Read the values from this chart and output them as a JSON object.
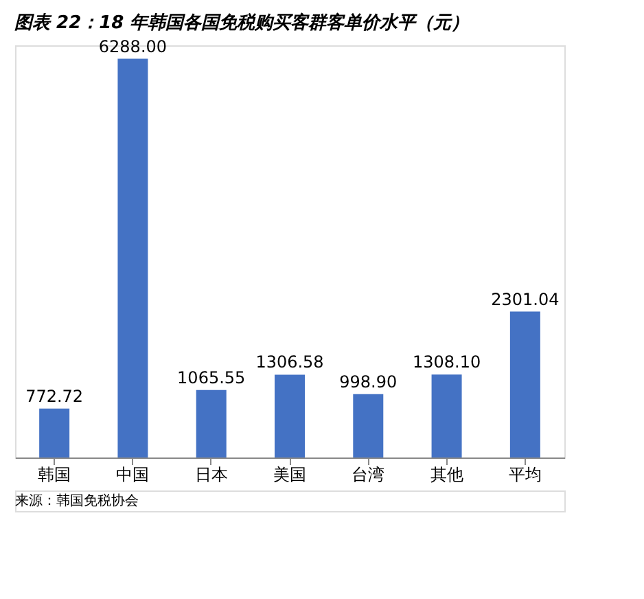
{
  "chart_data": {
    "type": "bar",
    "title": "图表 22：18 年韩国各国免税购买客群客单价水平（元）",
    "categories": [
      "韩国",
      "中国",
      "日本",
      "美国",
      "台湾",
      "其他",
      "平均"
    ],
    "values": [
      772.72,
      6288.0,
      1065.55,
      1306.58,
      998.9,
      1308.1,
      2301.04
    ],
    "value_labels": [
      "772.72",
      "6288.00",
      "1065.55",
      "1306.58",
      "998.90",
      "1308.10",
      "2301.04"
    ],
    "color": "#4472c4",
    "grid": false,
    "tick_labels": "x",
    "annotations": [
      "来源：韩国免税协会"
    ]
  }
}
